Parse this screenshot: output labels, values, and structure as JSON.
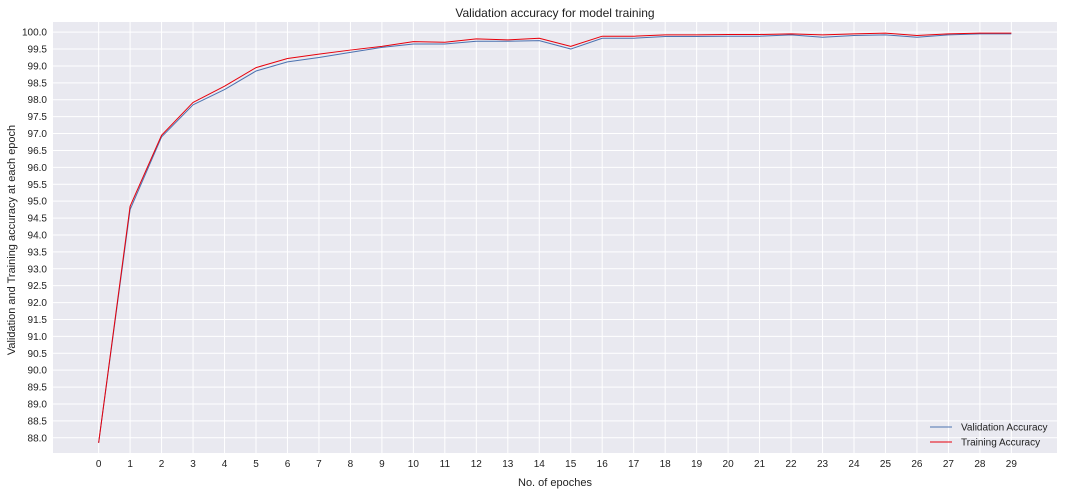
{
  "chart_data": {
    "type": "line",
    "title": "Validation accuracy for model training",
    "xlabel": "No. of epoches",
    "ylabel": "Validation and Training accuracy at each epoch",
    "x": [
      0,
      1,
      2,
      3,
      4,
      5,
      6,
      7,
      8,
      9,
      10,
      11,
      12,
      13,
      14,
      15,
      16,
      17,
      18,
      19,
      20,
      21,
      22,
      23,
      24,
      25,
      26,
      27,
      28,
      29
    ],
    "xlim": [
      -1.45,
      30.45
    ],
    "ylim": [
      87.55,
      100.3
    ],
    "yticks": [
      88.0,
      88.5,
      89.0,
      89.5,
      90.0,
      90.5,
      91.0,
      91.5,
      92.0,
      92.5,
      93.0,
      93.5,
      94.0,
      94.5,
      95.0,
      95.5,
      96.0,
      96.5,
      97.0,
      97.5,
      98.0,
      98.5,
      99.0,
      99.5,
      100.0
    ],
    "ytick_labels": [
      "88.0",
      "88.5",
      "89.0",
      "89.5",
      "90.0",
      "90.5",
      "91.0",
      "91.5",
      "92.0",
      "92.5",
      "93.0",
      "93.5",
      "94.0",
      "94.5",
      "95.0",
      "95.5",
      "96.0",
      "96.5",
      "97.0",
      "97.5",
      "98.0",
      "98.5",
      "99.0",
      "99.5",
      "100.0"
    ],
    "xtick_labels": [
      "0",
      "1",
      "2",
      "3",
      "4",
      "5",
      "6",
      "7",
      "8",
      "9",
      "10",
      "11",
      "12",
      "13",
      "14",
      "15",
      "16",
      "17",
      "18",
      "19",
      "20",
      "21",
      "22",
      "23",
      "24",
      "25",
      "26",
      "27",
      "28",
      "29"
    ],
    "grid": true,
    "background": "#e9e9f0",
    "legend_position": "bottom-right",
    "series": [
      {
        "name": "Validation Accuracy",
        "color": "#4c72b0",
        "values": [
          87.85,
          94.75,
          96.9,
          97.85,
          98.3,
          98.85,
          99.12,
          99.25,
          99.4,
          99.55,
          99.65,
          99.65,
          99.73,
          99.73,
          99.75,
          99.5,
          99.82,
          99.82,
          99.87,
          99.87,
          99.88,
          99.88,
          99.92,
          99.85,
          99.9,
          99.92,
          99.85,
          99.92,
          99.95,
          99.95
        ]
      },
      {
        "name": "Training Accuracy",
        "color": "#e8000b",
        "values": [
          87.85,
          94.85,
          96.95,
          97.92,
          98.4,
          98.95,
          99.22,
          99.35,
          99.47,
          99.58,
          99.72,
          99.7,
          99.8,
          99.77,
          99.82,
          99.58,
          99.88,
          99.88,
          99.92,
          99.92,
          99.93,
          99.93,
          99.95,
          99.92,
          99.95,
          99.97,
          99.9,
          99.95,
          99.97,
          99.97
        ]
      }
    ]
  }
}
